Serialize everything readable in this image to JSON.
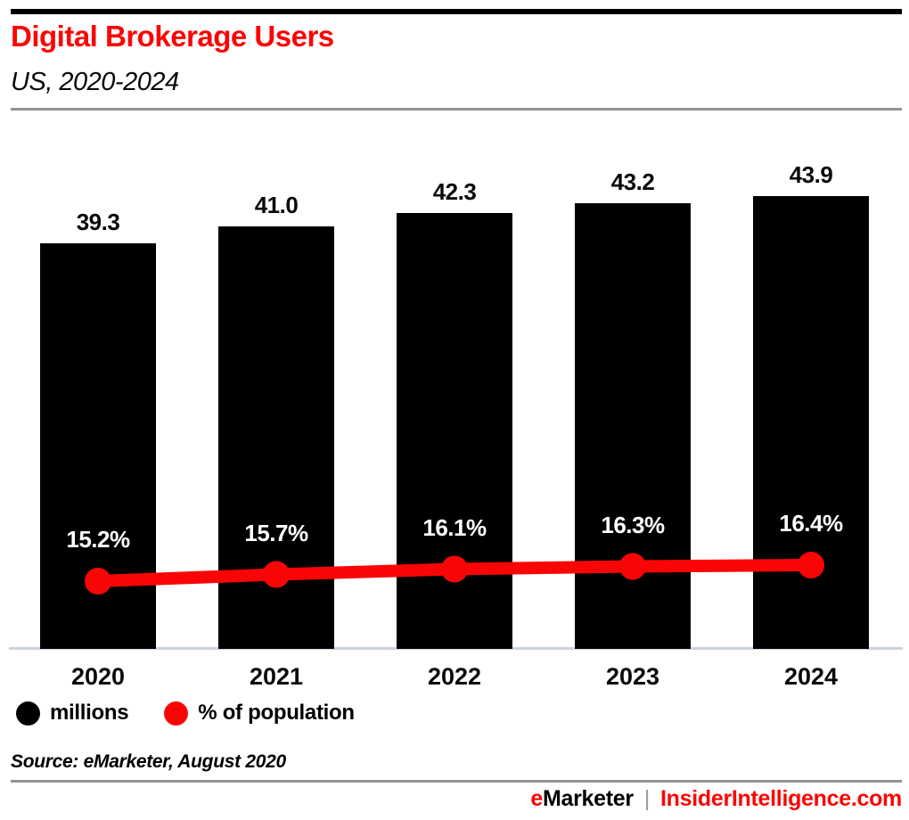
{
  "header": {
    "title": "Digital Brokerage Users",
    "subtitle": "US, 2020-2024"
  },
  "chart_data": {
    "type": "bar",
    "title": "Digital Brokerage Users",
    "subtitle": "US, 2020-2024",
    "categories": [
      "2020",
      "2021",
      "2022",
      "2023",
      "2024"
    ],
    "series": [
      {
        "name": "millions",
        "type": "bar",
        "color": "#000000",
        "values": [
          39.3,
          41.0,
          42.3,
          43.2,
          43.9
        ],
        "labels": [
          "39.3",
          "41.0",
          "42.3",
          "43.2",
          "43.9"
        ]
      },
      {
        "name": "% of population",
        "type": "line",
        "color": "#fa0505",
        "values": [
          15.2,
          15.7,
          16.1,
          16.3,
          16.4
        ],
        "labels": [
          "15.2%",
          "15.7%",
          "16.1%",
          "16.3%",
          "16.4%"
        ]
      }
    ],
    "xlabel": "",
    "ylabel": "",
    "grid": false,
    "legend_position": "bottom"
  },
  "source": {
    "text": "Source: eMarketer, August 2020"
  },
  "footer": {
    "brand_e": "e",
    "brand_rest": "Marketer",
    "divider": "|",
    "site": "InsiderIntelligence.com"
  },
  "colors": {
    "accent": "#fa0505",
    "bar": "#000000",
    "rule": "#939393",
    "axis_line": "#ccd2de"
  }
}
